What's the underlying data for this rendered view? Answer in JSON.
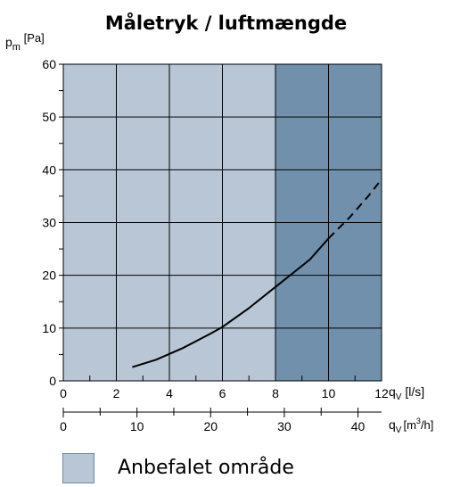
{
  "chart_data": {
    "type": "line",
    "title": "Måletryk / luftmængde",
    "y_axis": {
      "symbol": "p",
      "subscript": "m",
      "unit": "[Pa]",
      "range": [
        0,
        60
      ],
      "ticks": [
        0,
        10,
        20,
        30,
        40,
        50,
        60
      ],
      "grid": true
    },
    "x_axis": {
      "symbol": "q",
      "subscript": "V",
      "unit": "[l/s]",
      "range": [
        0,
        12
      ],
      "ticks": [
        0,
        2,
        4,
        6,
        8,
        10,
        12
      ],
      "minor_step": 1,
      "grid": true
    },
    "x_axis_secondary": {
      "symbol": "q",
      "subscript": "V",
      "unit_base": "[m",
      "unit_sup": "3",
      "unit_tail": "/h]",
      "range": [
        0,
        43.2
      ],
      "ticks": [
        0,
        10,
        20,
        30,
        40
      ],
      "minor_step": 5
    },
    "regions": [
      {
        "x_from": 0,
        "x_to": 8,
        "color": "#b8c6d6",
        "name": "Anbefalet område"
      },
      {
        "x_from": 8,
        "x_to": 12,
        "color": "#7090ac"
      }
    ],
    "series": [
      {
        "color": "#000000",
        "segments": [
          {
            "style": "solid",
            "points": [
              [
                2.6,
                2.6
              ],
              [
                3.5,
                4.0
              ],
              [
                4.5,
                6.2
              ],
              [
                5.5,
                8.8
              ],
              [
                6.0,
                10.2
              ],
              [
                7.0,
                13.8
              ],
              [
                8.0,
                17.8
              ],
              [
                8.5,
                19.8
              ],
              [
                9.3,
                23.0
              ],
              [
                10.0,
                27.0
              ]
            ]
          },
          {
            "style": "dashed",
            "points": [
              [
                10.0,
                27.0
              ],
              [
                10.8,
                31.0
              ],
              [
                11.5,
                35.0
              ],
              [
                12.0,
                38.2
              ]
            ]
          }
        ]
      }
    ],
    "legend": {
      "label": "Anbefalet område",
      "color": "#b8c6d6",
      "position": "bottom-left"
    }
  }
}
